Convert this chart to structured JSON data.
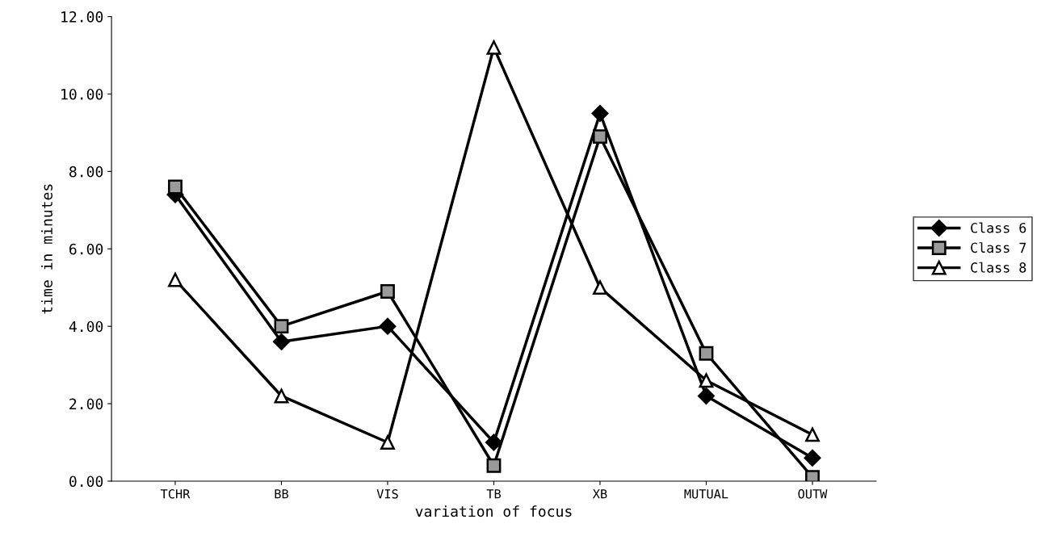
{
  "chart_data": {
    "type": "line",
    "xlabel": "variation of focus",
    "ylabel": "time in minutes",
    "categories": [
      "TCHR",
      "BB",
      "VIS",
      "TB",
      "XB",
      "MUTUAL",
      "OUTW"
    ],
    "series": [
      {
        "name": "Class 6",
        "color": "#000000",
        "marker": "diamond",
        "values": [
          7.4,
          3.6,
          4.0,
          1.0,
          9.5,
          2.2,
          0.6
        ]
      },
      {
        "name": "Class 7",
        "color": "#000000",
        "marker": "square",
        "values": [
          7.6,
          4.0,
          4.9,
          0.4,
          8.9,
          3.3,
          0.1
        ]
      },
      {
        "name": "Class 8",
        "color": "#000000",
        "marker": "triangle",
        "values": [
          5.2,
          2.2,
          1.0,
          11.2,
          5.0,
          2.6,
          1.2
        ]
      }
    ],
    "ylim": [
      0,
      12
    ],
    "yticks": [
      {
        "value": 0,
        "label": "0.00"
      },
      {
        "value": 2,
        "label": "2.00"
      },
      {
        "value": 4,
        "label": "4.00"
      },
      {
        "value": 6,
        "label": "6.00"
      },
      {
        "value": 8,
        "label": "8.00"
      },
      {
        "value": 10,
        "label": "10.00"
      },
      {
        "value": 12,
        "label": "12.00"
      }
    ],
    "grid": false,
    "legend": "right",
    "line_style": "solid"
  }
}
